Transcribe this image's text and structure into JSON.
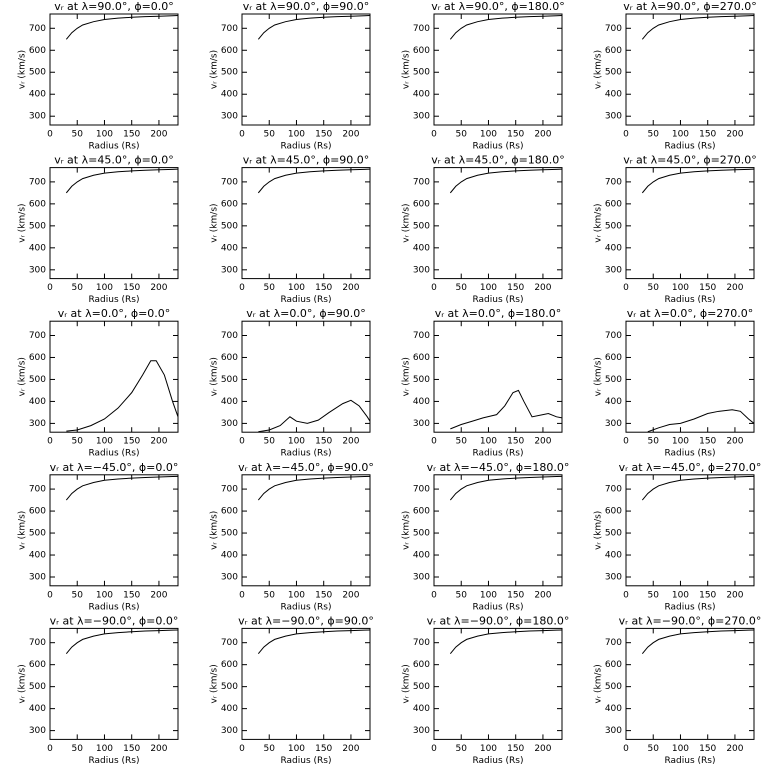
{
  "chart_data": [
    {
      "type": "line",
      "title": "vᵣ at λ=90.0°, ϕ=0.0°",
      "xlabel": "Radius (Rs)",
      "ylabel": "vᵣ (km/s)",
      "x": [
        30,
        40,
        50,
        60,
        80,
        100,
        125,
        150,
        175,
        200,
        225,
        235
      ],
      "values": [
        650,
        680,
        700,
        715,
        730,
        740,
        746,
        750,
        753,
        755,
        757,
        758
      ],
      "xlim": [
        0,
        235
      ],
      "ylim": [
        260,
        765
      ],
      "xticks": [
        0,
        50,
        100,
        150,
        200
      ],
      "yticks": [
        300,
        400,
        500,
        600,
        700
      ]
    },
    {
      "type": "line",
      "title": "vᵣ at λ=90.0°, ϕ=90.0°",
      "xlabel": "Radius (Rs)",
      "ylabel": "vᵣ (km/s)",
      "x": [
        30,
        40,
        50,
        60,
        80,
        100,
        125,
        150,
        175,
        200,
        225,
        235
      ],
      "values": [
        650,
        680,
        700,
        715,
        730,
        740,
        746,
        750,
        753,
        755,
        757,
        758
      ],
      "xlim": [
        0,
        235
      ],
      "ylim": [
        260,
        765
      ],
      "xticks": [
        0,
        50,
        100,
        150,
        200
      ],
      "yticks": [
        300,
        400,
        500,
        600,
        700
      ]
    },
    {
      "type": "line",
      "title": "vᵣ at λ=90.0°, ϕ=180.0°",
      "xlabel": "Radius (Rs)",
      "ylabel": "vᵣ (km/s)",
      "x": [
        30,
        40,
        50,
        60,
        80,
        100,
        125,
        150,
        175,
        200,
        225,
        235
      ],
      "values": [
        650,
        680,
        700,
        715,
        730,
        740,
        746,
        750,
        753,
        755,
        757,
        758
      ],
      "xlim": [
        0,
        235
      ],
      "ylim": [
        260,
        765
      ],
      "xticks": [
        0,
        50,
        100,
        150,
        200
      ],
      "yticks": [
        300,
        400,
        500,
        600,
        700
      ]
    },
    {
      "type": "line",
      "title": "vᵣ at λ=90.0°, ϕ=270.0°",
      "xlabel": "Radius (Rs)",
      "ylabel": "vᵣ (km/s)",
      "x": [
        30,
        40,
        50,
        60,
        80,
        100,
        125,
        150,
        175,
        200,
        225,
        235
      ],
      "values": [
        650,
        680,
        700,
        715,
        730,
        740,
        746,
        750,
        753,
        755,
        757,
        758
      ],
      "xlim": [
        0,
        235
      ],
      "ylim": [
        260,
        765
      ],
      "xticks": [
        0,
        50,
        100,
        150,
        200
      ],
      "yticks": [
        300,
        400,
        500,
        600,
        700
      ]
    },
    {
      "type": "line",
      "title": "vᵣ at λ=45.0°, ϕ=0.0°",
      "xlabel": "Radius (Rs)",
      "ylabel": "vᵣ (km/s)",
      "x": [
        30,
        40,
        50,
        60,
        80,
        100,
        125,
        150,
        175,
        200,
        225,
        235
      ],
      "values": [
        650,
        680,
        700,
        715,
        730,
        740,
        746,
        750,
        753,
        755,
        757,
        758
      ],
      "xlim": [
        0,
        235
      ],
      "ylim": [
        260,
        765
      ],
      "xticks": [
        0,
        50,
        100,
        150,
        200
      ],
      "yticks": [
        300,
        400,
        500,
        600,
        700
      ]
    },
    {
      "type": "line",
      "title": "vᵣ at λ=45.0°, ϕ=90.0°",
      "xlabel": "Radius (Rs)",
      "ylabel": "vᵣ (km/s)",
      "x": [
        30,
        40,
        50,
        60,
        80,
        100,
        125,
        150,
        175,
        200,
        225,
        235
      ],
      "values": [
        650,
        680,
        700,
        715,
        730,
        740,
        746,
        750,
        753,
        755,
        757,
        758
      ],
      "xlim": [
        0,
        235
      ],
      "ylim": [
        260,
        765
      ],
      "xticks": [
        0,
        50,
        100,
        150,
        200
      ],
      "yticks": [
        300,
        400,
        500,
        600,
        700
      ]
    },
    {
      "type": "line",
      "title": "vᵣ at λ=45.0°, ϕ=180.0°",
      "xlabel": "Radius (Rs)",
      "ylabel": "vᵣ (km/s)",
      "x": [
        30,
        40,
        50,
        60,
        80,
        100,
        125,
        150,
        175,
        200,
        225,
        235
      ],
      "values": [
        650,
        680,
        700,
        715,
        730,
        740,
        746,
        750,
        753,
        755,
        757,
        758
      ],
      "xlim": [
        0,
        235
      ],
      "ylim": [
        260,
        765
      ],
      "xticks": [
        0,
        50,
        100,
        150,
        200
      ],
      "yticks": [
        300,
        400,
        500,
        600,
        700
      ]
    },
    {
      "type": "line",
      "title": "vᵣ at λ=45.0°, ϕ=270.0°",
      "xlabel": "Radius (Rs)",
      "ylabel": "vᵣ (km/s)",
      "x": [
        30,
        40,
        50,
        60,
        80,
        100,
        125,
        150,
        175,
        200,
        225,
        235
      ],
      "values": [
        650,
        680,
        700,
        715,
        730,
        740,
        746,
        750,
        753,
        755,
        757,
        758
      ],
      "xlim": [
        0,
        235
      ],
      "ylim": [
        260,
        765
      ],
      "xticks": [
        0,
        50,
        100,
        150,
        200
      ],
      "yticks": [
        300,
        400,
        500,
        600,
        700
      ]
    },
    {
      "type": "line",
      "title": "vᵣ at λ=0.0°, ϕ=0.0°",
      "xlabel": "Radius (Rs)",
      "ylabel": "vᵣ (km/s)",
      "x": [
        30,
        50,
        75,
        100,
        125,
        150,
        170,
        185,
        195,
        210,
        225,
        235
      ],
      "values": [
        265,
        270,
        290,
        320,
        370,
        440,
        520,
        585,
        585,
        520,
        400,
        330
      ],
      "xlim": [
        0,
        235
      ],
      "ylim": [
        260,
        765
      ],
      "xticks": [
        0,
        50,
        100,
        150,
        200
      ],
      "yticks": [
        300,
        400,
        500,
        600,
        700
      ]
    },
    {
      "type": "line",
      "title": "vᵣ at λ=0.0°, ϕ=90.0°",
      "xlabel": "Radius (Rs)",
      "ylabel": "vᵣ (km/s)",
      "x": [
        30,
        50,
        70,
        88,
        100,
        120,
        140,
        160,
        185,
        200,
        215,
        230,
        235
      ],
      "values": [
        262,
        270,
        290,
        330,
        310,
        300,
        315,
        350,
        390,
        405,
        380,
        330,
        310
      ],
      "xlim": [
        0,
        235
      ],
      "ylim": [
        260,
        765
      ],
      "xticks": [
        0,
        50,
        100,
        150,
        200
      ],
      "yticks": [
        300,
        400,
        500,
        600,
        700
      ]
    },
    {
      "type": "line",
      "title": "vᵣ at λ=0.0°, ϕ=180.0°",
      "xlabel": "Radius (Rs)",
      "ylabel": "vᵣ (km/s)",
      "x": [
        30,
        50,
        70,
        90,
        115,
        130,
        145,
        155,
        165,
        180,
        200,
        210,
        225,
        235
      ],
      "values": [
        275,
        295,
        310,
        325,
        340,
        380,
        440,
        450,
        400,
        330,
        340,
        345,
        330,
        325
      ],
      "xlim": [
        0,
        235
      ],
      "ylim": [
        260,
        765
      ],
      "xticks": [
        0,
        50,
        100,
        150,
        200
      ],
      "yticks": [
        300,
        400,
        500,
        600,
        700
      ]
    },
    {
      "type": "line",
      "title": "vᵣ at λ=0.0°, ϕ=270.0°",
      "xlabel": "Radius (Rs)",
      "ylabel": "vᵣ (km/s)",
      "x": [
        40,
        60,
        80,
        100,
        125,
        150,
        170,
        195,
        210,
        225,
        235
      ],
      "values": [
        262,
        280,
        295,
        300,
        320,
        345,
        355,
        362,
        355,
        320,
        300
      ],
      "xlim": [
        0,
        235
      ],
      "ylim": [
        260,
        765
      ],
      "xticks": [
        0,
        50,
        100,
        150,
        200
      ],
      "yticks": [
        300,
        400,
        500,
        600,
        700
      ]
    },
    {
      "type": "line",
      "title": "vᵣ at λ=−45.0°, ϕ=0.0°",
      "xlabel": "Radius (Rs)",
      "ylabel": "vᵣ (km/s)",
      "x": [
        30,
        40,
        50,
        60,
        80,
        100,
        125,
        150,
        175,
        200,
        225,
        235
      ],
      "values": [
        650,
        680,
        700,
        715,
        730,
        740,
        746,
        750,
        753,
        755,
        757,
        758
      ],
      "xlim": [
        0,
        235
      ],
      "ylim": [
        260,
        765
      ],
      "xticks": [
        0,
        50,
        100,
        150,
        200
      ],
      "yticks": [
        300,
        400,
        500,
        600,
        700
      ]
    },
    {
      "type": "line",
      "title": "vᵣ at λ=−45.0°, ϕ=90.0°",
      "xlabel": "Radius (Rs)",
      "ylabel": "vᵣ (km/s)",
      "x": [
        30,
        40,
        50,
        60,
        80,
        100,
        125,
        150,
        175,
        200,
        225,
        235
      ],
      "values": [
        650,
        680,
        700,
        715,
        730,
        740,
        746,
        750,
        753,
        755,
        757,
        758
      ],
      "xlim": [
        0,
        235
      ],
      "ylim": [
        260,
        765
      ],
      "xticks": [
        0,
        50,
        100,
        150,
        200
      ],
      "yticks": [
        300,
        400,
        500,
        600,
        700
      ]
    },
    {
      "type": "line",
      "title": "vᵣ at λ=−45.0°, ϕ=180.0°",
      "xlabel": "Radius (Rs)",
      "ylabel": "vᵣ (km/s)",
      "x": [
        30,
        40,
        50,
        60,
        80,
        100,
        125,
        150,
        175,
        200,
        225,
        235
      ],
      "values": [
        650,
        680,
        700,
        715,
        730,
        740,
        746,
        750,
        753,
        755,
        757,
        758
      ],
      "xlim": [
        0,
        235
      ],
      "ylim": [
        260,
        765
      ],
      "xticks": [
        0,
        50,
        100,
        150,
        200
      ],
      "yticks": [
        300,
        400,
        500,
        600,
        700
      ]
    },
    {
      "type": "line",
      "title": "vᵣ at λ=−45.0°, ϕ=270.0°",
      "xlabel": "Radius (Rs)",
      "ylabel": "vᵣ (km/s)",
      "x": [
        30,
        40,
        50,
        60,
        80,
        100,
        125,
        150,
        175,
        200,
        225,
        235
      ],
      "values": [
        650,
        680,
        700,
        715,
        730,
        740,
        746,
        750,
        753,
        755,
        757,
        758
      ],
      "xlim": [
        0,
        235
      ],
      "ylim": [
        260,
        765
      ],
      "xticks": [
        0,
        50,
        100,
        150,
        200
      ],
      "yticks": [
        300,
        400,
        500,
        600,
        700
      ]
    },
    {
      "type": "line",
      "title": "vᵣ at λ=−90.0°, ϕ=0.0°",
      "xlabel": "Radius (Rs)",
      "ylabel": "vᵣ (km/s)",
      "x": [
        30,
        40,
        50,
        60,
        80,
        100,
        125,
        150,
        175,
        200,
        225,
        235
      ],
      "values": [
        650,
        680,
        700,
        715,
        730,
        740,
        746,
        750,
        753,
        755,
        757,
        758
      ],
      "xlim": [
        0,
        235
      ],
      "ylim": [
        260,
        765
      ],
      "xticks": [
        0,
        50,
        100,
        150,
        200
      ],
      "yticks": [
        300,
        400,
        500,
        600,
        700
      ]
    },
    {
      "type": "line",
      "title": "vᵣ at λ=−90.0°, ϕ=90.0°",
      "xlabel": "Radius (Rs)",
      "ylabel": "vᵣ (km/s)",
      "x": [
        30,
        40,
        50,
        60,
        80,
        100,
        125,
        150,
        175,
        200,
        225,
        235
      ],
      "values": [
        650,
        680,
        700,
        715,
        730,
        740,
        746,
        750,
        753,
        755,
        757,
        758
      ],
      "xlim": [
        0,
        235
      ],
      "ylim": [
        260,
        765
      ],
      "xticks": [
        0,
        50,
        100,
        150,
        200
      ],
      "yticks": [
        300,
        400,
        500,
        600,
        700
      ]
    },
    {
      "type": "line",
      "title": "vᵣ at λ=−90.0°, ϕ=180.0°",
      "xlabel": "Radius (Rs)",
      "ylabel": "vᵣ (km/s)",
      "x": [
        30,
        40,
        50,
        60,
        80,
        100,
        125,
        150,
        175,
        200,
        225,
        235
      ],
      "values": [
        650,
        680,
        700,
        715,
        730,
        740,
        746,
        750,
        753,
        755,
        757,
        758
      ],
      "xlim": [
        0,
        235
      ],
      "ylim": [
        260,
        765
      ],
      "xticks": [
        0,
        50,
        100,
        150,
        200
      ],
      "yticks": [
        300,
        400,
        500,
        600,
        700
      ]
    },
    {
      "type": "line",
      "title": "vᵣ at λ=−90.0°, ϕ=270.0°",
      "xlabel": "Radius (Rs)",
      "ylabel": "vᵣ (km/s)",
      "x": [
        30,
        40,
        50,
        60,
        80,
        100,
        125,
        150,
        175,
        200,
        225,
        235
      ],
      "values": [
        650,
        680,
        700,
        715,
        730,
        740,
        746,
        750,
        753,
        755,
        757,
        758
      ],
      "xlim": [
        0,
        235
      ],
      "ylim": [
        260,
        765
      ],
      "xticks": [
        0,
        50,
        100,
        150,
        200
      ],
      "yticks": [
        300,
        400,
        500,
        600,
        700
      ]
    }
  ]
}
